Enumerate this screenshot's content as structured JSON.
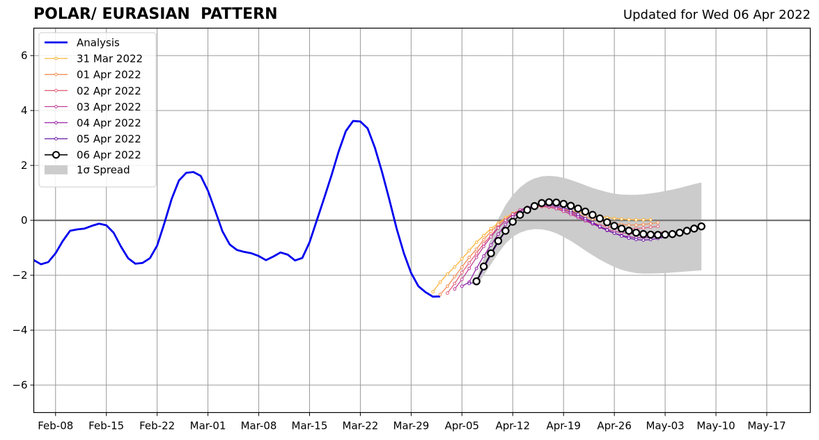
{
  "chart_data": {
    "type": "line",
    "title": "POLAR/ EURASIAN  PATTERN",
    "subtitle": "Updated for Wed 06 Apr 2022",
    "xlabel": "",
    "ylabel": "",
    "x_range": [
      "2022-02-05",
      "2022-05-23"
    ],
    "ylim": [
      -7,
      7
    ],
    "x_tick_labels": [
      "Feb-08",
      "Feb-15",
      "Feb-22",
      "Mar-01",
      "Mar-08",
      "Mar-15",
      "Mar-22",
      "Mar-29",
      "Apr-05",
      "Apr-12",
      "Apr-19",
      "Apr-26",
      "May-03",
      "May-10",
      "May-17"
    ],
    "y_tick_labels": [
      "6",
      "4",
      "2",
      "0",
      "−2",
      "−4",
      "−6"
    ],
    "y_ticks": [
      6,
      4,
      2,
      0,
      -2,
      -4,
      -6
    ],
    "grid": true,
    "zero_line": true,
    "legend_position": "top-left",
    "analysis": {
      "name": "Analysis",
      "color": "#0000ee",
      "start_date": "2022-02-05",
      "values": [
        -1.45,
        -1.6,
        -1.52,
        -1.2,
        -0.75,
        -0.38,
        -0.33,
        -0.3,
        -0.2,
        -0.12,
        -0.18,
        -0.45,
        -0.95,
        -1.38,
        -1.58,
        -1.55,
        -1.38,
        -0.92,
        -0.1,
        0.78,
        1.45,
        1.73,
        1.76,
        1.62,
        1.08,
        0.35,
        -0.4,
        -0.88,
        -1.08,
        -1.15,
        -1.2,
        -1.3,
        -1.45,
        -1.32,
        -1.17,
        -1.25,
        -1.46,
        -1.37,
        -0.8,
        0.0,
        0.8,
        1.62,
        2.5,
        3.25,
        3.62,
        3.6,
        3.35,
        2.65,
        1.75,
        0.75,
        -0.3,
        -1.2,
        -1.92,
        -2.4,
        -2.62,
        -2.78,
        -2.77
      ]
    },
    "forecasts": [
      {
        "name": "31 Mar 2022",
        "color": "#fbb33a",
        "start_date": "2022-04-01",
        "values": [
          -2.6,
          -2.25,
          -1.95,
          -1.7,
          -1.4,
          -1.1,
          -0.8,
          -0.55,
          -0.3,
          -0.1,
          0.1,
          0.25,
          0.38,
          0.45,
          0.5,
          0.5,
          0.48,
          0.45,
          0.4,
          0.35,
          0.3,
          0.25,
          0.2,
          0.15,
          0.1,
          0.07,
          0.05,
          0.03,
          0.02,
          0.02,
          0.03
        ]
      },
      {
        "name": "01 Apr 2022",
        "color": "#f48c52",
        "start_date": "2022-04-02",
        "values": [
          -2.7,
          -2.4,
          -2.05,
          -1.7,
          -1.35,
          -1.05,
          -0.7,
          -0.4,
          -0.15,
          0.05,
          0.2,
          0.35,
          0.45,
          0.5,
          0.52,
          0.5,
          0.45,
          0.38,
          0.3,
          0.22,
          0.13,
          0.05,
          -0.02,
          -0.08,
          -0.12,
          -0.15,
          -0.17,
          -0.17,
          -0.15,
          -0.12,
          -0.08
        ]
      },
      {
        "name": "02 Apr 2022",
        "color": "#e0637a",
        "start_date": "2022-04-03",
        "values": [
          -2.65,
          -2.3,
          -1.9,
          -1.55,
          -1.2,
          -0.85,
          -0.55,
          -0.25,
          0.0,
          0.2,
          0.35,
          0.45,
          0.5,
          0.5,
          0.48,
          0.42,
          0.33,
          0.23,
          0.12,
          0.02,
          -0.08,
          -0.17,
          -0.23,
          -0.28,
          -0.3,
          -0.3,
          -0.3,
          -0.28,
          -0.25,
          -0.22
        ]
      },
      {
        "name": "03 Apr 2022",
        "color": "#c03f95",
        "start_date": "2022-04-04",
        "values": [
          -2.5,
          -2.15,
          -1.75,
          -1.35,
          -0.95,
          -0.6,
          -0.28,
          0.0,
          0.22,
          0.38,
          0.48,
          0.53,
          0.53,
          0.5,
          0.43,
          0.33,
          0.22,
          0.1,
          -0.02,
          -0.13,
          -0.23,
          -0.32,
          -0.4,
          -0.45,
          -0.48,
          -0.5,
          -0.5,
          -0.48,
          -0.45,
          -0.42
        ]
      },
      {
        "name": "04 Apr 2022",
        "color": "#9622a6",
        "start_date": "2022-04-05",
        "values": [
          -2.4,
          -2.25,
          -1.75,
          -1.3,
          -0.9,
          -0.5,
          -0.15,
          0.12,
          0.32,
          0.46,
          0.55,
          0.57,
          0.55,
          0.5,
          0.4,
          0.28,
          0.15,
          0.02,
          -0.12,
          -0.25,
          -0.37,
          -0.47,
          -0.55,
          -0.6,
          -0.63,
          -0.63,
          -0.62,
          -0.58,
          -0.53,
          -0.47
        ]
      },
      {
        "name": "05 Apr 2022",
        "color": "#6a1aa8",
        "start_date": "2022-04-06",
        "values": [
          -2.3,
          -2.25,
          -1.75,
          -1.25,
          -0.8,
          -0.4,
          -0.05,
          0.22,
          0.42,
          0.55,
          0.6,
          0.6,
          0.55,
          0.47,
          0.35,
          0.22,
          0.07,
          -0.08,
          -0.22,
          -0.35,
          -0.47,
          -0.57,
          -0.65,
          -0.7,
          -0.72,
          -0.7,
          -0.66,
          -0.6,
          -0.53,
          -0.46
        ]
      },
      {
        "name": "06 Apr 2022",
        "color": "#000000",
        "start_date": "2022-04-07",
        "values": [
          -2.22,
          -1.68,
          -1.2,
          -0.75,
          -0.38,
          -0.05,
          0.2,
          0.38,
          0.52,
          0.63,
          0.66,
          0.65,
          0.6,
          0.53,
          0.43,
          0.32,
          0.2,
          0.07,
          -0.07,
          -0.2,
          -0.3,
          -0.38,
          -0.45,
          -0.5,
          -0.52,
          -0.53,
          -0.52,
          -0.5,
          -0.45,
          -0.38,
          -0.3,
          -0.22
        ]
      }
    ],
    "spread": {
      "name": "1σ Spread",
      "color": "#cccccc",
      "start_date": "2022-04-07",
      "upper": [
        -2.1,
        -1.4,
        -0.65,
        0.05,
        0.55,
        0.92,
        1.2,
        1.4,
        1.53,
        1.6,
        1.62,
        1.6,
        1.55,
        1.47,
        1.38,
        1.28,
        1.18,
        1.1,
        1.03,
        0.97,
        0.94,
        0.93,
        0.93,
        0.95,
        0.98,
        1.02,
        1.07,
        1.12,
        1.18,
        1.25,
        1.32,
        1.38
      ],
      "lower": [
        -2.4,
        -2.0,
        -1.6,
        -1.2,
        -0.85,
        -0.6,
        -0.45,
        -0.36,
        -0.32,
        -0.33,
        -0.38,
        -0.47,
        -0.6,
        -0.75,
        -0.92,
        -1.1,
        -1.27,
        -1.43,
        -1.57,
        -1.7,
        -1.8,
        -1.87,
        -1.92,
        -1.94,
        -1.94,
        -1.93,
        -1.92,
        -1.9,
        -1.88,
        -1.86,
        -1.84,
        -1.82
      ]
    }
  }
}
